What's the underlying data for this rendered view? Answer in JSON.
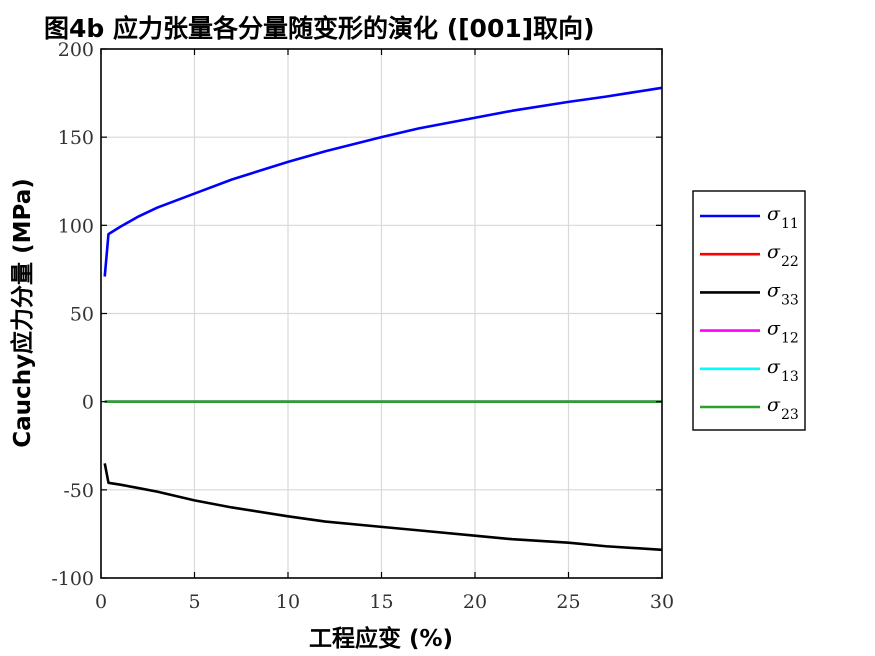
{
  "chart_data": {
    "type": "line",
    "title": "图4b   应力张量各分量随变形的演化 ([001]取向)",
    "xlabel": "工程应变 (%)",
    "ylabel": "Cauchy应力分量 (MPa)",
    "xlim": [
      0,
      30
    ],
    "ylim": [
      -100,
      200
    ],
    "xticks": [
      0,
      5,
      10,
      15,
      20,
      25,
      30
    ],
    "yticks": [
      -100,
      -50,
      0,
      50,
      100,
      150,
      200
    ],
    "grid": true,
    "legend_position": "outside-right",
    "series": [
      {
        "name": "σ11",
        "symbol": "σ",
        "subscript": "11",
        "color": "#0000ff",
        "x": [
          0.2,
          0.4,
          1,
          2,
          3,
          5,
          7,
          10,
          12,
          15,
          17,
          20,
          22,
          25,
          27,
          30
        ],
        "y": [
          71,
          95,
          99,
          105,
          110,
          118,
          126,
          136,
          142,
          150,
          155,
          161,
          165,
          170,
          173,
          178
        ]
      },
      {
        "name": "σ22",
        "symbol": "σ",
        "subscript": "22",
        "color": "#ff0000",
        "x": [
          0.2,
          30
        ],
        "y": [
          0,
          0
        ]
      },
      {
        "name": "σ33",
        "symbol": "σ",
        "subscript": "33",
        "color": "#000000",
        "x": [
          0.2,
          0.4,
          1,
          2,
          3,
          5,
          7,
          10,
          12,
          15,
          17,
          20,
          22,
          25,
          27,
          30
        ],
        "y": [
          -35,
          -46,
          -47,
          -49,
          -51,
          -56,
          -60,
          -65,
          -68,
          -71,
          -73,
          -76,
          -78,
          -80,
          -82,
          -84
        ]
      },
      {
        "name": "σ12",
        "symbol": "σ",
        "subscript": "12",
        "color": "#ff00ff",
        "x": [
          0.2,
          30
        ],
        "y": [
          0,
          0
        ]
      },
      {
        "name": "σ13",
        "symbol": "σ",
        "subscript": "13",
        "color": "#00ffff",
        "x": [
          0.2,
          30
        ],
        "y": [
          0,
          0
        ]
      },
      {
        "name": "σ23",
        "symbol": "σ",
        "subscript": "23",
        "color": "#2ca02c",
        "x": [
          0.2,
          30
        ],
        "y": [
          0,
          0
        ]
      }
    ]
  }
}
